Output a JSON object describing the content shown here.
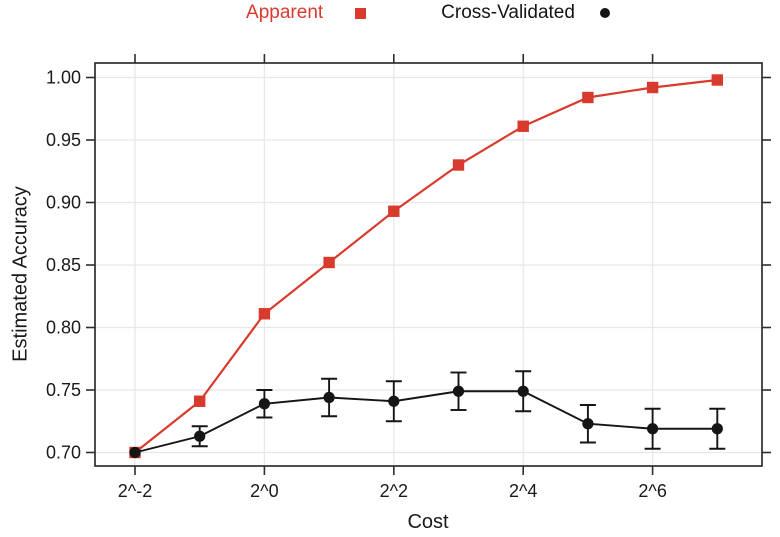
{
  "legend": {
    "items": [
      {
        "label": "Apparent",
        "color": "#D93A2E",
        "marker": "square"
      },
      {
        "label": "Cross-Validated",
        "color": "#151515",
        "marker": "circle"
      }
    ]
  },
  "chart_data": {
    "type": "line",
    "title": "",
    "xlabel": "Cost",
    "ylabel": "Estimated Accuracy",
    "x_scale": "log2",
    "x_log2": [
      -2,
      -1,
      0,
      1,
      2,
      3,
      4,
      5,
      6,
      7
    ],
    "x_values": [
      0.25,
      0.5,
      1,
      2,
      4,
      8,
      16,
      32,
      64,
      128
    ],
    "x_tick_labels": [
      "2^-2",
      "2^0",
      "2^2",
      "2^4",
      "2^6"
    ],
    "x_tick_log2": [
      -2,
      0,
      2,
      4,
      6
    ],
    "y_ticks": [
      0.7,
      0.75,
      0.8,
      0.85,
      0.9,
      0.95,
      1.0
    ],
    "y_tick_labels": [
      "0.70",
      "0.75",
      "0.80",
      "0.85",
      "0.90",
      "0.95",
      "1.00"
    ],
    "xlim_log2": [
      -2.63,
      7.69
    ],
    "ylim": [
      0.689,
      1.012
    ],
    "grid": true,
    "legend_position": "top",
    "series": [
      {
        "name": "Apparent",
        "marker": "square",
        "color": "#D93A2E",
        "values": [
          0.7,
          0.741,
          0.811,
          0.852,
          0.893,
          0.93,
          0.961,
          0.984,
          0.992,
          0.998
        ]
      },
      {
        "name": "Cross-Validated",
        "marker": "circle",
        "color": "#151515",
        "values": [
          0.7,
          0.713,
          0.739,
          0.744,
          0.741,
          0.749,
          0.749,
          0.723,
          0.719,
          0.719
        ],
        "error": [
          0,
          0.008,
          0.011,
          0.015,
          0.016,
          0.015,
          0.016,
          0.015,
          0.016,
          0.016
        ]
      }
    ],
    "colors": {
      "grid": "#E7E7E7",
      "frame": "#2E2E2E",
      "tick": "#2E2E2E",
      "tick_label": "#1a1a1a"
    }
  }
}
